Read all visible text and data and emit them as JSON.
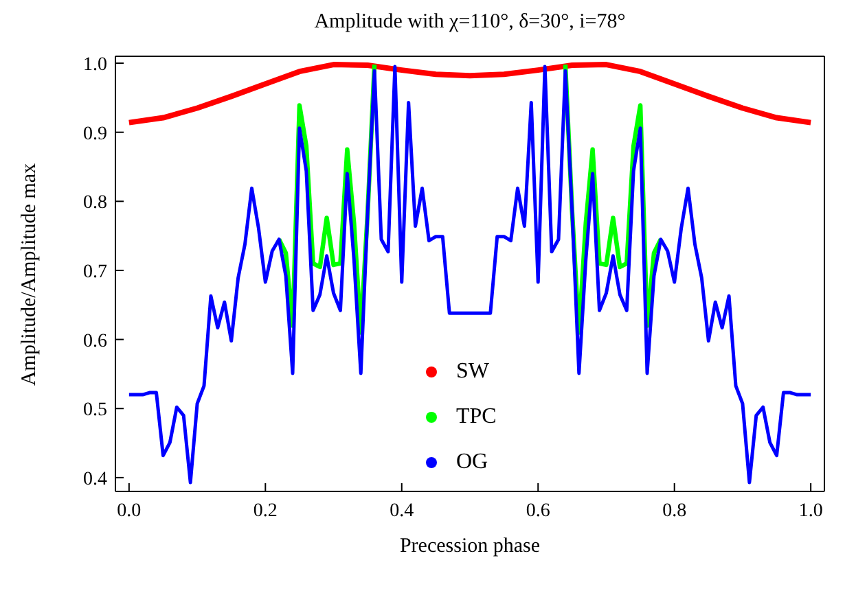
{
  "chart_data": {
    "type": "line",
    "title": "Amplitude with χ=110°, δ=30°, i=78°",
    "xlabel": "Precession phase",
    "ylabel": "Amplitude/Amplitude max",
    "xlim": [
      -0.02,
      1.02
    ],
    "ylim": [
      0.38,
      1.01
    ],
    "xticks": [
      {
        "value": 0,
        "label": "0.0"
      },
      0.2,
      0.4,
      0.6,
      0.8,
      {
        "value": 1,
        "label": "1.0"
      }
    ],
    "yticks": [
      0.4,
      0.5,
      0.6,
      0.7,
      0.8,
      0.9,
      {
        "value": 1,
        "label": "1.0"
      }
    ],
    "legend": "center",
    "marker": "none",
    "line_style": "solid",
    "series": [
      {
        "name": "SW",
        "color": "#ff0000",
        "x": [
          0,
          0.05,
          0.1,
          0.15,
          0.2,
          0.25,
          0.3,
          0.35,
          0.4,
          0.45,
          0.5,
          0.55,
          0.6,
          0.65,
          0.7,
          0.75,
          0.8,
          0.85,
          0.9,
          0.95,
          1
        ],
        "values": [
          0.914,
          0.921,
          0.935,
          0.952,
          0.97,
          0.988,
          0.998,
          0.997,
          0.99,
          0.984,
          0.982,
          0.984,
          0.99,
          0.997,
          0.998,
          0.988,
          0.97,
          0.952,
          0.935,
          0.921,
          0.914
        ]
      },
      {
        "name": "TPC",
        "color": "#00ff00",
        "x": [
          0.22,
          0.23,
          0.24,
          0.25,
          0.26,
          0.27,
          0.28,
          0.29,
          0.3,
          0.31,
          0.32,
          0.33,
          0.34,
          0.35,
          0.36,
          0.5,
          0.64,
          0.65,
          0.66,
          0.67,
          0.68,
          0.69,
          0.7,
          0.71,
          0.72,
          0.73,
          0.74,
          0.75,
          0.76,
          0.77,
          0.78
        ],
        "values": [
          0.745,
          0.725,
          0.62,
          0.939,
          0.88,
          0.71,
          0.705,
          0.776,
          0.708,
          0.71,
          0.875,
          0.768,
          0.61,
          0.784,
          0.998,
          null,
          0.998,
          0.784,
          0.61,
          0.768,
          0.875,
          0.71,
          0.708,
          0.776,
          0.705,
          0.71,
          0.88,
          0.939,
          0.62,
          0.725,
          0.745
        ]
      },
      {
        "name": "OG",
        "color": "#0000ff",
        "x": [
          0,
          0.01,
          0.02,
          0.03,
          0.04,
          0.05,
          0.06,
          0.07,
          0.08,
          0.09,
          0.1,
          0.11,
          0.12,
          0.13,
          0.14,
          0.15,
          0.16,
          0.17,
          0.18,
          0.19,
          0.2,
          0.21,
          0.22,
          0.23,
          0.24,
          0.25,
          0.26,
          0.27,
          0.28,
          0.29,
          0.3,
          0.31,
          0.32,
          0.33,
          0.34,
          0.35,
          0.36,
          0.37,
          0.38,
          0.39,
          0.4,
          0.41,
          0.42,
          0.43,
          0.44,
          0.45,
          0.46,
          0.47,
          0.48,
          0.49,
          0.5,
          0.51,
          0.52,
          0.53,
          0.54,
          0.55,
          0.56,
          0.57,
          0.58,
          0.59,
          0.6,
          0.61,
          0.62,
          0.63,
          0.64,
          0.65,
          0.66,
          0.67,
          0.68,
          0.69,
          0.7,
          0.71,
          0.72,
          0.73,
          0.74,
          0.75,
          0.76,
          0.77,
          0.78,
          0.79,
          0.8,
          0.81,
          0.82,
          0.83,
          0.84,
          0.85,
          0.86,
          0.87,
          0.88,
          0.89,
          0.9,
          0.91,
          0.92,
          0.93,
          0.94,
          0.95,
          0.96,
          0.97,
          0.98,
          0.99,
          1
        ],
        "values": [
          0.52,
          0.52,
          0.52,
          0.523,
          0.523,
          0.432,
          0.451,
          0.502,
          0.49,
          0.393,
          0.507,
          0.533,
          0.663,
          0.617,
          0.654,
          0.598,
          0.689,
          0.738,
          0.819,
          0.761,
          0.683,
          0.728,
          0.745,
          0.692,
          0.551,
          0.906,
          0.844,
          0.642,
          0.665,
          0.721,
          0.667,
          0.642,
          0.84,
          0.715,
          0.551,
          0.784,
          0.989,
          0.745,
          0.727,
          0.995,
          0.683,
          0.943,
          0.764,
          0.819,
          0.743,
          0.749,
          0.749,
          0.638,
          0.638,
          0.638,
          0.638,
          0.638,
          0.638,
          0.638,
          0.749,
          0.749,
          0.743,
          0.819,
          0.764,
          0.943,
          0.683,
          0.995,
          0.727,
          0.745,
          0.989,
          0.784,
          0.551,
          0.715,
          0.84,
          0.642,
          0.667,
          0.721,
          0.665,
          0.642,
          0.844,
          0.906,
          0.551,
          0.692,
          0.745,
          0.728,
          0.683,
          0.761,
          0.819,
          0.738,
          0.689,
          0.598,
          0.654,
          0.617,
          0.663,
          0.533,
          0.507,
          0.393,
          0.49,
          0.502,
          0.451,
          0.432,
          0.523,
          0.523,
          0.52,
          0.52,
          0.52
        ]
      }
    ]
  }
}
